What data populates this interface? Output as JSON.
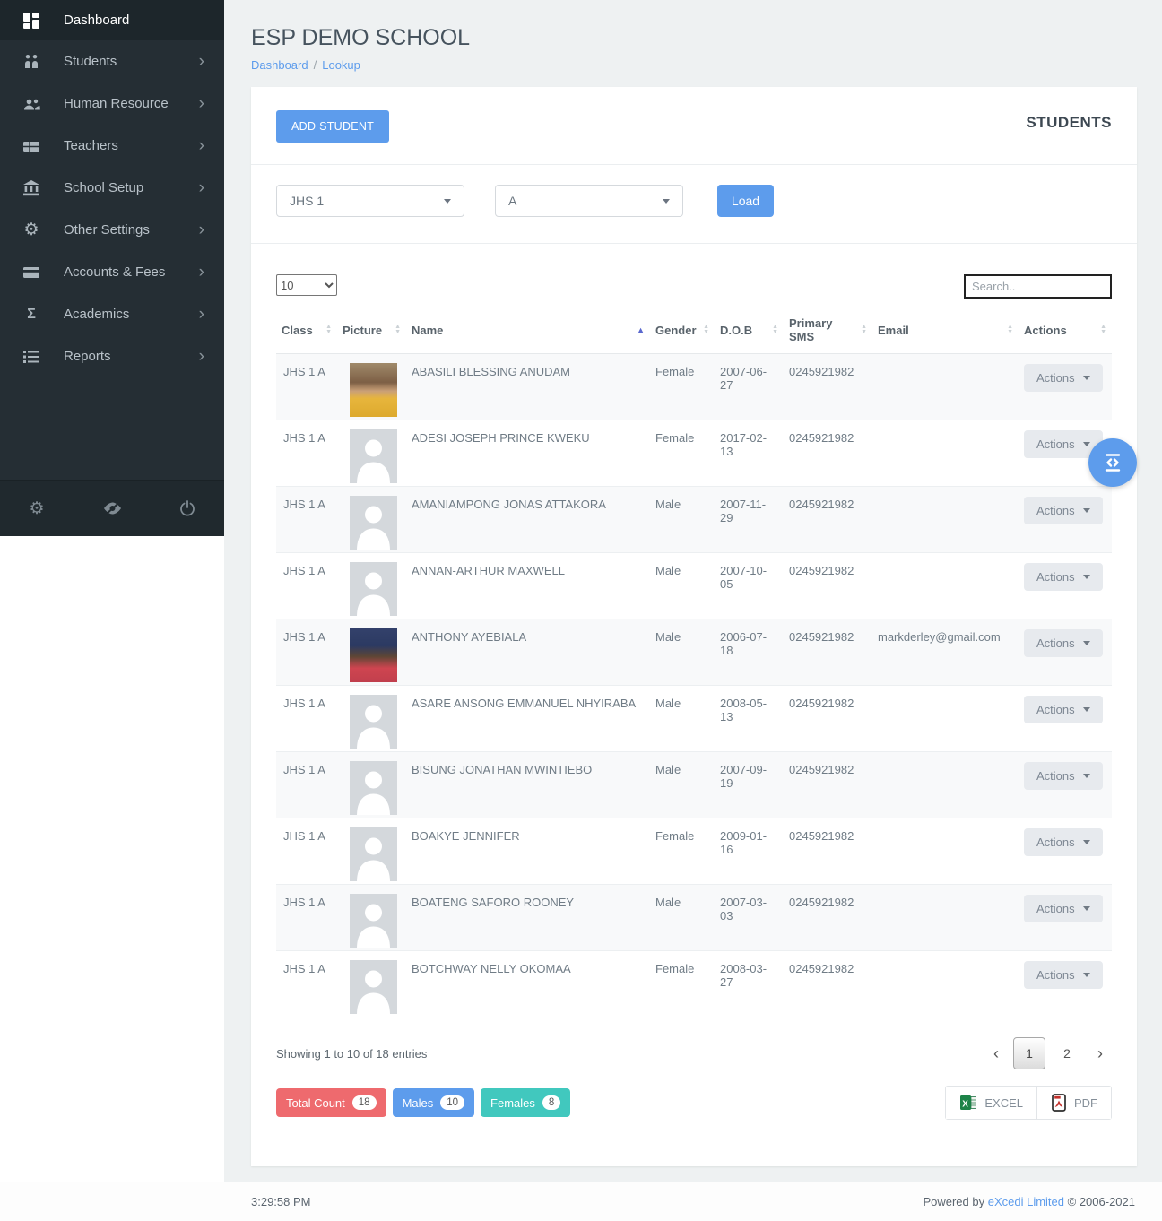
{
  "accent_color": "#5d9cec",
  "sidebar": {
    "items": [
      {
        "label": "Dashboard",
        "icon": "dashboard",
        "active": true,
        "has_submenu": false
      },
      {
        "label": "Students",
        "icon": "students",
        "active": false,
        "has_submenu": true
      },
      {
        "label": "Human Resource",
        "icon": "human-resource",
        "active": false,
        "has_submenu": true
      },
      {
        "label": "Teachers",
        "icon": "teachers",
        "active": false,
        "has_submenu": true
      },
      {
        "label": "School Setup",
        "icon": "school-setup",
        "active": false,
        "has_submenu": true
      },
      {
        "label": "Other Settings",
        "icon": "gear",
        "active": false,
        "has_submenu": true
      },
      {
        "label": "Accounts & Fees",
        "icon": "credit-card",
        "active": false,
        "has_submenu": true
      },
      {
        "label": "Academics",
        "icon": "sigma",
        "active": false,
        "has_submenu": true
      },
      {
        "label": "Reports",
        "icon": "list",
        "active": false,
        "has_submenu": true
      }
    ],
    "footer_icons": [
      "gear",
      "eye-slash",
      "power"
    ]
  },
  "header": {
    "school_name": "ESP DEMO SCHOOL",
    "breadcrumb": [
      "Dashboard",
      "Lookup"
    ]
  },
  "panel": {
    "add_student_label": "ADD STUDENT",
    "title": "STUDENTS",
    "filters": {
      "class_value": "JHS 1",
      "section_value": "A",
      "load_label": "Load"
    },
    "table": {
      "length_value": "10",
      "search_placeholder": "Search..",
      "columns": [
        {
          "label": "Class",
          "sort": "both"
        },
        {
          "label": "Picture",
          "sort": "both"
        },
        {
          "label": "Name",
          "sort": "asc"
        },
        {
          "label": "Gender",
          "sort": "both"
        },
        {
          "label": "D.O.B",
          "sort": "both"
        },
        {
          "label": "Primary SMS",
          "sort": "both"
        },
        {
          "label": "Email",
          "sort": "both"
        },
        {
          "label": "Actions",
          "sort": "both"
        }
      ],
      "actions_button_label": "Actions",
      "rows": [
        {
          "class": "JHS 1 A",
          "photo": "girl-yellow",
          "name": "ABASILI BLESSING ANUDAM",
          "gender": "Female",
          "dob": "2007-06-27",
          "primary_sms": "0245921982",
          "email": ""
        },
        {
          "class": "JHS 1 A",
          "photo": "none",
          "name": "ADESI JOSEPH PRINCE KWEKU",
          "gender": "Female",
          "dob": "2017-02-13",
          "primary_sms": "0245921982",
          "email": ""
        },
        {
          "class": "JHS 1 A",
          "photo": "none",
          "name": "AMANIAMPONG JONAS ATTAKORA",
          "gender": "Male",
          "dob": "2007-11-29",
          "primary_sms": "0245921982",
          "email": ""
        },
        {
          "class": "JHS 1 A",
          "photo": "none",
          "name": "ANNAN-ARTHUR MAXWELL",
          "gender": "Male",
          "dob": "2007-10-05",
          "primary_sms": "0245921982",
          "email": ""
        },
        {
          "class": "JHS 1 A",
          "photo": "boy-red",
          "name": "ANTHONY AYEBIALA",
          "gender": "Male",
          "dob": "2006-07-18",
          "primary_sms": "0245921982",
          "email": "markderley@gmail.com"
        },
        {
          "class": "JHS 1 A",
          "photo": "none",
          "name": "ASARE ANSONG EMMANUEL NHYIRABA",
          "gender": "Male",
          "dob": "2008-05-13",
          "primary_sms": "0245921982",
          "email": ""
        },
        {
          "class": "JHS 1 A",
          "photo": "none",
          "name": "BISUNG JONATHAN MWINTIEBO",
          "gender": "Male",
          "dob": "2007-09-19",
          "primary_sms": "0245921982",
          "email": ""
        },
        {
          "class": "JHS 1 A",
          "photo": "none",
          "name": "BOAKYE JENNIFER",
          "gender": "Female",
          "dob": "2009-01-16",
          "primary_sms": "0245921982",
          "email": ""
        },
        {
          "class": "JHS 1 A",
          "photo": "none",
          "name": "BOATENG SAFORO ROONEY",
          "gender": "Male",
          "dob": "2007-03-03",
          "primary_sms": "0245921982",
          "email": ""
        },
        {
          "class": "JHS 1 A",
          "photo": "none",
          "name": "BOTCHWAY NELLY OKOMAA",
          "gender": "Female",
          "dob": "2008-03-27",
          "primary_sms": "0245921982",
          "email": ""
        }
      ],
      "summary": "Showing 1 to 10 of 18 entries",
      "pagination": {
        "pages": [
          {
            "label": "1",
            "active": true
          },
          {
            "label": "2",
            "active": false
          }
        ]
      }
    },
    "badges": [
      {
        "label": "Total Count",
        "count": "18",
        "color": "#ee6a6e"
      },
      {
        "label": "Males",
        "count": "10",
        "color": "#5d9cec"
      },
      {
        "label": "Females",
        "count": "8",
        "color": "#41c8be"
      }
    ],
    "exports": [
      {
        "label": "EXCEL",
        "icon": "excel"
      },
      {
        "label": "PDF",
        "icon": "pdf"
      }
    ]
  },
  "footer": {
    "time": "3:29:58 PM",
    "powered_by": "Powered by",
    "company": "eXcedi Limited",
    "copyright": "© 2006-2021"
  }
}
